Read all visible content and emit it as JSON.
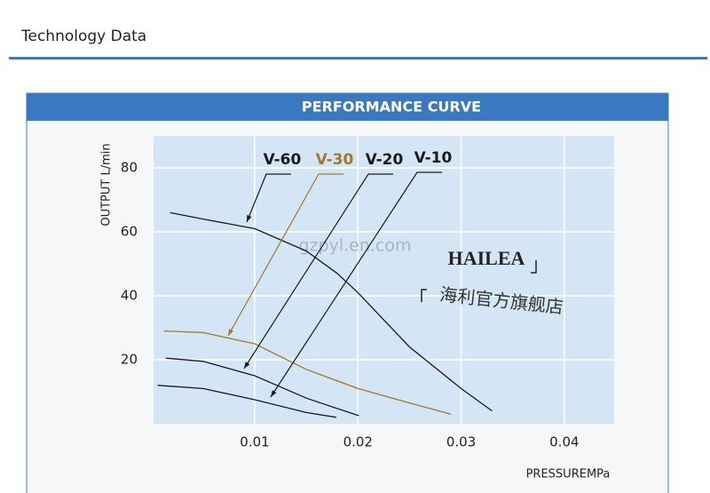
{
  "header": {
    "title": "Technology Data"
  },
  "banner": {
    "title": "PERFORMANCE CURVE"
  },
  "watermarks": {
    "site": "gzpyl.en.com",
    "brand": "HAILEA",
    "store": "海利官方旗舰店"
  },
  "chart_data": {
    "type": "line",
    "x_label": "PRESSUREMPa",
    "y_label": "OUTPUT L/min",
    "xlim": [
      0,
      0.045
    ],
    "ylim": [
      0,
      90
    ],
    "xticks": [
      0.01,
      0.02,
      0.03,
      0.04
    ],
    "yticks": [
      20,
      40,
      60,
      80
    ],
    "grid": true,
    "series": [
      {
        "name": "V-60",
        "color": "#1a1a1a",
        "x": [
          0.0018,
          0.005,
          0.01,
          0.015,
          0.018,
          0.02,
          0.025,
          0.03,
          0.033
        ],
        "values": [
          66,
          64,
          61,
          54,
          47,
          41,
          24,
          11,
          4
        ]
      },
      {
        "name": "V-30",
        "color": "#a0782a",
        "x": [
          0.0012,
          0.005,
          0.01,
          0.015,
          0.02,
          0.025,
          0.029
        ],
        "values": [
          29,
          28.5,
          25,
          17,
          11,
          6.5,
          3
        ]
      },
      {
        "name": "V-20",
        "color": "#1a1a1a",
        "x": [
          0.0014,
          0.005,
          0.01,
          0.015,
          0.0201
        ],
        "values": [
          20.5,
          19.5,
          15,
          8,
          2.5
        ]
      },
      {
        "name": "V-10",
        "color": "#1a1a1a",
        "x": [
          0.0006,
          0.005,
          0.01,
          0.015,
          0.0179
        ],
        "values": [
          12,
          11,
          7.5,
          3.5,
          2
        ]
      }
    ]
  }
}
